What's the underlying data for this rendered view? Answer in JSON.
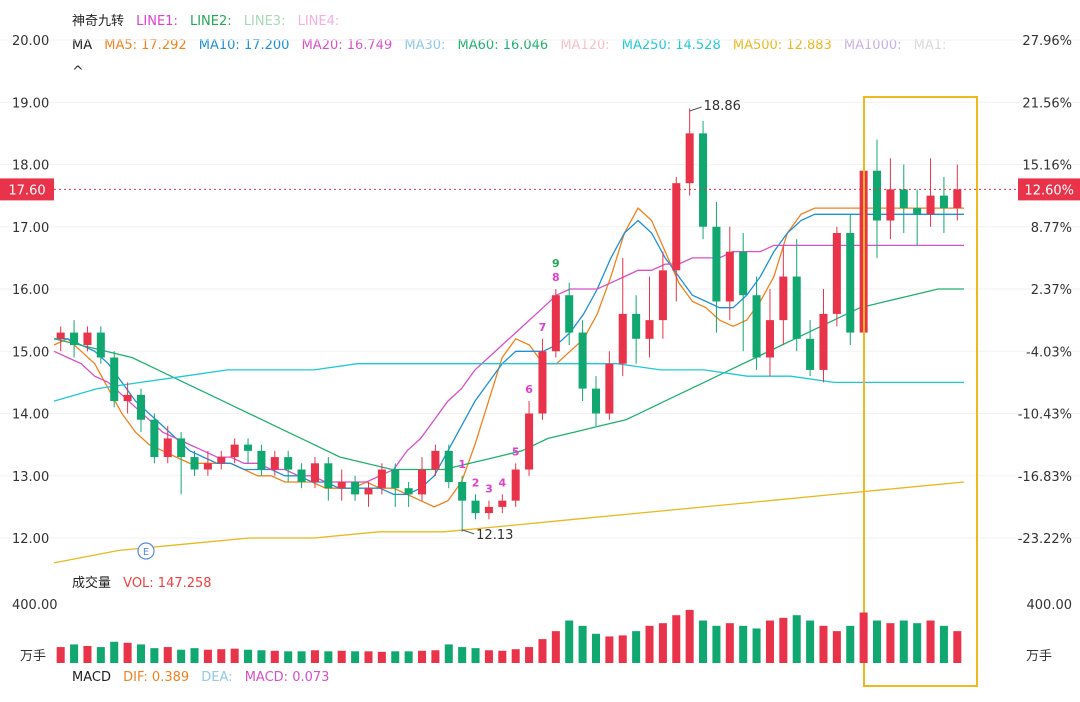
{
  "header": {
    "indicator_name": "神奇九转",
    "lines": [
      {
        "label": "LINE1:",
        "color": "#e040d0"
      },
      {
        "label": "LINE2:",
        "color": "#22aa55"
      },
      {
        "label": "LINE3:",
        "color": "#a8d8b8"
      },
      {
        "label": "LINE4:",
        "color": "#f0b0e0"
      }
    ],
    "ma_title": "MA",
    "ma_items": [
      {
        "label": "MA5: 17.292",
        "color": "#f0821e"
      },
      {
        "label": "MA10: 17.200",
        "color": "#1e90d8"
      },
      {
        "label": "MA20: 16.749",
        "color": "#d850c8"
      },
      {
        "label": "MA30:",
        "color": "#90c8e8"
      },
      {
        "label": "MA60: 16.046",
        "color": "#20b070"
      },
      {
        "label": "MA120:",
        "color": "#f8c0c8"
      },
      {
        "label": "MA250: 14.528",
        "color": "#20c8d8"
      },
      {
        "label": "MA500: 12.883",
        "color": "#e8b820"
      },
      {
        "label": "MA1000:",
        "color": "#c8b0e8"
      },
      {
        "label": "MA1:",
        "color": "#d8d8d8"
      }
    ],
    "chevron": "^"
  },
  "volume": {
    "title": "成交量",
    "vol_label": "VOL: 147.258",
    "vol_color": "#f04040",
    "tick_label": "400.00",
    "unit": "万手"
  },
  "macd": {
    "title": "MACD",
    "dif": "DIF: 0.389",
    "dea": "DEA:",
    "macd": "MACD: 0.073"
  },
  "colors": {
    "up": "#e8334a",
    "down": "#10a870",
    "current_price": "#e8334a",
    "highlight_box": "#f0b81e"
  },
  "chart_data": {
    "type": "candlestick",
    "y_axis_left": {
      "range": [
        11.6,
        20.4
      ],
      "ticks": [
        "20.00",
        "19.00",
        "18.00",
        "17.00",
        "16.00",
        "15.00",
        "14.00",
        "13.00",
        "12.00"
      ]
    },
    "y_axis_right_ticks": [
      "27.96%",
      "21.56%",
      "15.16%",
      "8.77%",
      "2.37%",
      "-4.03%",
      "-10.43%",
      "-16.83%",
      "-23.22%"
    ],
    "current_price": {
      "left": "17.60",
      "right": "12.60%",
      "value": 17.6
    },
    "annotations": {
      "high": {
        "text": "18.86",
        "value": 18.86
      },
      "low": {
        "text": "12.13",
        "value": 12.13
      },
      "event_marker": "E"
    },
    "td_marks": [
      {
        "text": "9",
        "index": 37,
        "color": "#22aa55"
      },
      {
        "text": "8",
        "index": 37,
        "color": "#e040d0"
      },
      {
        "text": "7",
        "index": 36,
        "color": "#e040d0"
      },
      {
        "text": "6",
        "index": 35,
        "color": "#e040d0"
      },
      {
        "text": "5",
        "index": 34,
        "color": "#e040d0"
      },
      {
        "text": "4",
        "index": 33,
        "color": "#e040d0"
      },
      {
        "text": "1",
        "index": 30,
        "color": "#e040d0"
      },
      {
        "text": "2",
        "index": 31,
        "color": "#e040d0"
      },
      {
        "text": "3",
        "index": 32,
        "color": "#e040d0"
      }
    ],
    "candles": [
      [
        15.2,
        15.3,
        15.0,
        15.4
      ],
      [
        15.3,
        15.1,
        14.9,
        15.5
      ],
      [
        15.1,
        15.3,
        15.0,
        15.4
      ],
      [
        15.3,
        14.9,
        14.8,
        15.4
      ],
      [
        14.9,
        14.2,
        14.1,
        15.0
      ],
      [
        14.2,
        14.3,
        14.0,
        14.5
      ],
      [
        14.3,
        13.9,
        13.7,
        14.4
      ],
      [
        13.9,
        13.3,
        13.2,
        14.0
      ],
      [
        13.3,
        13.6,
        13.2,
        13.8
      ],
      [
        13.6,
        13.3,
        12.7,
        13.7
      ],
      [
        13.3,
        13.1,
        13.0,
        13.4
      ],
      [
        13.1,
        13.2,
        13.0,
        13.4
      ],
      [
        13.2,
        13.3,
        13.1,
        13.4
      ],
      [
        13.3,
        13.5,
        13.2,
        13.6
      ],
      [
        13.5,
        13.4,
        13.2,
        13.6
      ],
      [
        13.4,
        13.1,
        13.0,
        13.5
      ],
      [
        13.1,
        13.3,
        13.0,
        13.4
      ],
      [
        13.3,
        13.1,
        12.9,
        13.4
      ],
      [
        13.1,
        12.9,
        12.8,
        13.2
      ],
      [
        12.9,
        13.2,
        12.8,
        13.3
      ],
      [
        13.2,
        12.8,
        12.6,
        13.3
      ],
      [
        12.8,
        12.9,
        12.6,
        13.1
      ],
      [
        12.9,
        12.7,
        12.6,
        13.0
      ],
      [
        12.7,
        12.8,
        12.5,
        12.9
      ],
      [
        12.8,
        13.1,
        12.7,
        13.2
      ],
      [
        13.1,
        12.8,
        12.5,
        13.2
      ],
      [
        12.8,
        12.7,
        12.5,
        12.9
      ],
      [
        12.7,
        13.1,
        12.6,
        13.3
      ],
      [
        13.1,
        13.4,
        13.0,
        13.5
      ],
      [
        13.4,
        12.9,
        12.8,
        13.5
      ],
      [
        12.9,
        12.6,
        12.1,
        13.0
      ],
      [
        12.6,
        12.4,
        12.3,
        12.7
      ],
      [
        12.4,
        12.5,
        12.3,
        12.6
      ],
      [
        12.5,
        12.6,
        12.4,
        12.7
      ],
      [
        12.6,
        13.1,
        12.5,
        13.2
      ],
      [
        13.1,
        14.0,
        13.0,
        14.2
      ],
      [
        14.0,
        15.0,
        13.9,
        15.2
      ],
      [
        15.0,
        15.9,
        14.9,
        16.0
      ],
      [
        15.9,
        15.3,
        15.1,
        16.1
      ],
      [
        15.3,
        14.4,
        14.2,
        15.5
      ],
      [
        14.4,
        14.0,
        13.8,
        14.6
      ],
      [
        14.0,
        14.8,
        13.9,
        15.0
      ],
      [
        14.8,
        15.6,
        14.6,
        16.5
      ],
      [
        15.6,
        15.2,
        14.8,
        15.9
      ],
      [
        15.2,
        15.5,
        14.9,
        16.2
      ],
      [
        15.5,
        16.3,
        15.2,
        16.6
      ],
      [
        16.3,
        17.7,
        15.8,
        17.8
      ],
      [
        17.7,
        18.5,
        17.5,
        18.9
      ],
      [
        18.5,
        17.0,
        16.8,
        18.7
      ],
      [
        17.0,
        15.8,
        15.3,
        17.4
      ],
      [
        15.8,
        16.6,
        15.5,
        17.0
      ],
      [
        16.6,
        15.9,
        15.0,
        16.9
      ],
      [
        15.9,
        14.9,
        14.7,
        16.2
      ],
      [
        14.9,
        15.5,
        14.6,
        16.0
      ],
      [
        15.5,
        16.2,
        15.1,
        16.7
      ],
      [
        16.2,
        15.2,
        15.0,
        16.8
      ],
      [
        15.2,
        14.7,
        14.6,
        15.5
      ],
      [
        14.7,
        15.6,
        14.5,
        16.0
      ],
      [
        15.6,
        16.9,
        15.4,
        17.0
      ],
      [
        16.9,
        15.3,
        15.1,
        17.2
      ],
      [
        15.3,
        17.9,
        14.9,
        18.3
      ],
      [
        17.9,
        17.1,
        16.5,
        18.4
      ],
      [
        17.1,
        17.6,
        16.8,
        18.1
      ],
      [
        17.6,
        17.3,
        16.9,
        18.0
      ],
      [
        17.3,
        17.2,
        16.7,
        17.6
      ],
      [
        17.2,
        17.5,
        17.0,
        18.1
      ],
      [
        17.5,
        17.3,
        16.9,
        17.8
      ],
      [
        17.3,
        17.6,
        17.1,
        18.0
      ]
    ],
    "ma_series": [
      {
        "name": "MA5",
        "color": "#f0821e",
        "values": [
          15.1,
          15.2,
          15.0,
          14.8,
          14.4,
          14.0,
          13.7,
          13.5,
          13.4,
          13.3,
          13.2,
          13.2,
          13.2,
          13.2,
          13.1,
          13.0,
          13.0,
          12.9,
          12.9,
          12.9,
          12.8,
          12.8,
          12.8,
          12.9,
          12.8,
          12.8,
          12.7,
          12.6,
          12.5,
          12.6,
          12.9,
          13.5,
          14.2,
          14.9,
          15.2,
          15.1,
          14.8,
          14.8,
          15.0,
          15.2,
          15.6,
          16.2,
          16.9,
          17.3,
          17.1,
          16.6,
          16.1,
          15.8,
          15.7,
          15.5,
          15.4,
          15.5,
          15.8,
          16.2,
          16.9,
          17.2,
          17.3,
          17.3,
          17.3,
          17.3,
          17.3,
          17.3,
          17.3,
          17.3,
          17.3,
          17.3,
          17.3,
          17.3
        ]
      },
      {
        "name": "MA10",
        "color": "#1e90d8",
        "values": [
          15.2,
          15.2,
          15.1,
          15.0,
          14.8,
          14.5,
          14.2,
          14.0,
          13.8,
          13.6,
          13.4,
          13.3,
          13.2,
          13.2,
          13.1,
          13.1,
          13.1,
          13.0,
          13.0,
          12.9,
          12.9,
          12.8,
          12.8,
          12.8,
          12.8,
          12.7,
          12.7,
          12.8,
          13.0,
          13.4,
          13.8,
          14.2,
          14.5,
          14.8,
          15.0,
          15.0,
          15.0,
          15.1,
          15.3,
          15.6,
          16.0,
          16.5,
          16.9,
          17.1,
          16.9,
          16.5,
          16.2,
          15.9,
          15.8,
          15.7,
          15.7,
          15.9,
          16.2,
          16.6,
          16.9,
          17.1,
          17.2,
          17.2,
          17.2,
          17.2,
          17.2,
          17.2,
          17.2,
          17.2,
          17.2,
          17.2,
          17.2,
          17.2
        ]
      },
      {
        "name": "MA20",
        "color": "#d850c8",
        "values": [
          15.0,
          14.9,
          14.8,
          14.6,
          14.5,
          14.3,
          14.1,
          13.9,
          13.7,
          13.6,
          13.5,
          13.4,
          13.3,
          13.3,
          13.2,
          13.2,
          13.1,
          13.1,
          13.0,
          13.0,
          12.9,
          12.9,
          12.9,
          12.9,
          13.0,
          13.1,
          13.4,
          13.6,
          13.9,
          14.2,
          14.4,
          14.7,
          14.9,
          15.1,
          15.3,
          15.5,
          15.7,
          15.9,
          16.0,
          16.0,
          16.0,
          16.1,
          16.2,
          16.3,
          16.3,
          16.4,
          16.4,
          16.5,
          16.5,
          16.5,
          16.6,
          16.6,
          16.6,
          16.7,
          16.7,
          16.7,
          16.7,
          16.7,
          16.7,
          16.7,
          16.7,
          16.7,
          16.7,
          16.7,
          16.7,
          16.7,
          16.7,
          16.7
        ]
      },
      {
        "name": "MA60",
        "color": "#20b070",
        "values": [
          15.2,
          15.1,
          15.0,
          14.9,
          14.7,
          14.5,
          14.3,
          14.1,
          13.9,
          13.7,
          13.5,
          13.3,
          13.2,
          13.1,
          13.1,
          13.1,
          13.2,
          13.3,
          13.4,
          13.6,
          13.7,
          13.8,
          13.9,
          14.1,
          14.3,
          14.5,
          14.7,
          14.9,
          15.1,
          15.3,
          15.5,
          15.7,
          15.8,
          15.9,
          16.0,
          16.0
        ]
      },
      {
        "name": "MA250",
        "color": "#20c8d8",
        "values": [
          14.2,
          14.4,
          14.5,
          14.6,
          14.7,
          14.7,
          14.7,
          14.8,
          14.8,
          14.8,
          14.8,
          14.8,
          14.8,
          14.8,
          14.7,
          14.7,
          14.6,
          14.6,
          14.5,
          14.5,
          14.5,
          14.5
        ]
      },
      {
        "name": "MA500",
        "color": "#e8b820",
        "values": [
          11.6,
          11.8,
          11.9,
          12.0,
          12.0,
          12.1,
          12.1,
          12.2,
          12.3,
          12.4,
          12.5,
          12.6,
          12.7,
          12.8,
          12.9
        ]
      }
    ],
    "volume_values": [
      30,
      35,
      32,
      30,
      40,
      38,
      35,
      28,
      30,
      25,
      28,
      25,
      26,
      27,
      25,
      24,
      23,
      22,
      22,
      24,
      22,
      23,
      22,
      22,
      21,
      22,
      22,
      23,
      24,
      35,
      30,
      28,
      24,
      23,
      26,
      30,
      45,
      60,
      80,
      70,
      55,
      50,
      52,
      60,
      70,
      75,
      90,
      100,
      80,
      70,
      75,
      70,
      65,
      80,
      85,
      90,
      80,
      70,
      60,
      70,
      95,
      80,
      75,
      80,
      75,
      80,
      70,
      60
    ]
  }
}
